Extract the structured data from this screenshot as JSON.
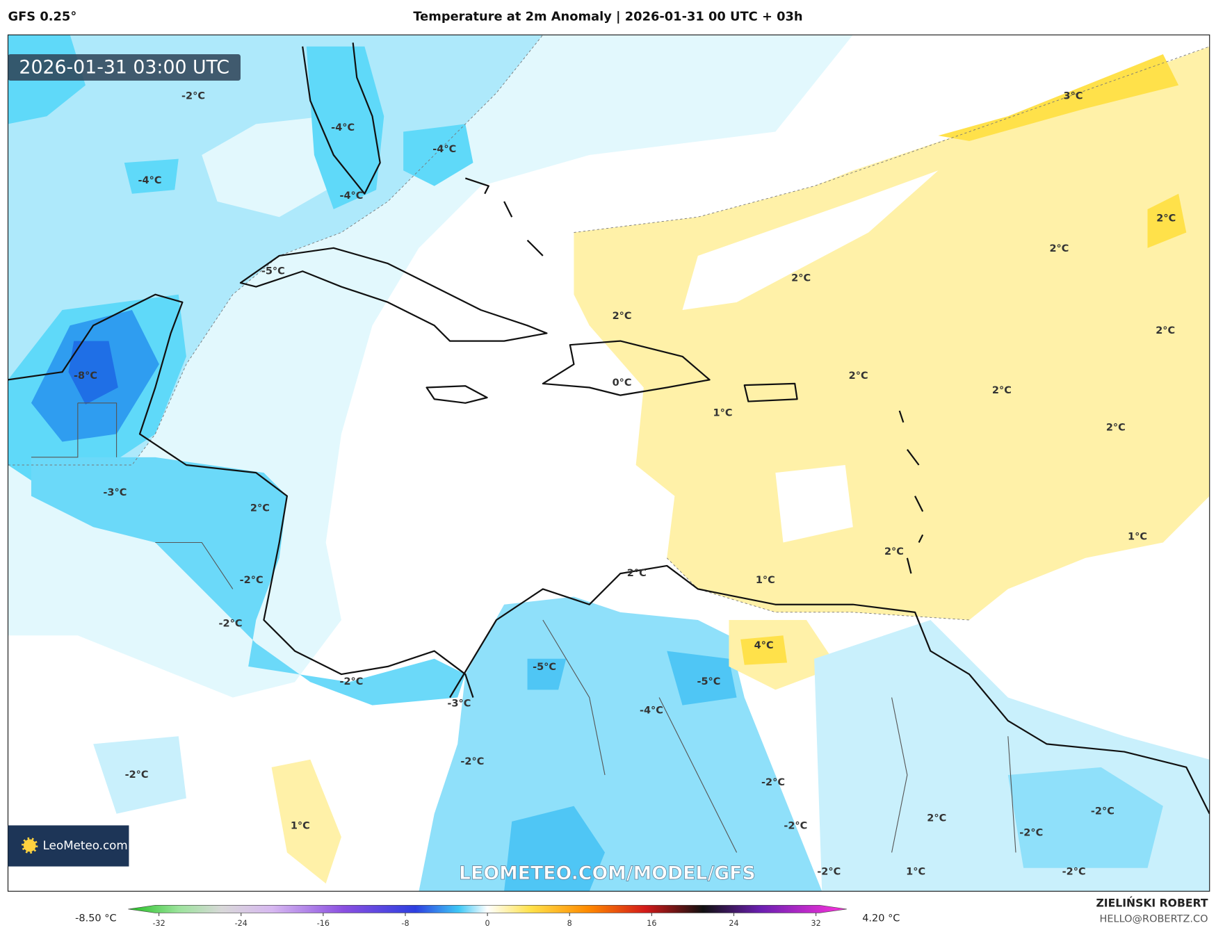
{
  "header": {
    "model": "GFS 0.25°",
    "title": "Temperature at 2m Anomaly | 2026-01-31 00 UTC + 03h"
  },
  "map": {
    "valid_time": "2026-01-31 03:00 UTC",
    "contour_labels": [
      "-2°C",
      "-4°C",
      "-4°C",
      "-4°C",
      "-4°C",
      "3°C",
      "2°C",
      "2°C",
      "-5°C",
      "2°C",
      "2°C",
      "2°C",
      "-8°C",
      "2°C",
      "0°C",
      "2°C",
      "1°C",
      "2°C",
      "-3°C",
      "2°C",
      "1°C",
      "2°C",
      "2°C",
      "1°C",
      "-2°C",
      "-2°C",
      "4°C",
      "-5°C",
      "-5°C",
      "-2°C",
      "-3°C",
      "-4°C",
      "-2°C",
      "-2°C",
      "-2°C",
      "2°C",
      "-2°C",
      "-2°C",
      "1°C",
      "-2°C",
      "-2°C",
      "1°C",
      "-2°C"
    ],
    "watermark": "LEOMETEO.COM/MODEL/GFS",
    "logo": "LeoMeteo.com"
  },
  "colorbar": {
    "min_label": "-8.50 °C",
    "max_label": "4.20 °C",
    "lim": [
      -35,
      35
    ],
    "ticks": [
      -32,
      -24,
      -16,
      -8,
      0,
      8,
      16,
      24,
      32
    ]
  },
  "credits": {
    "author": "ZIELIŃSKI ROBERT",
    "email": "HELLO@ROBERTZ.CO"
  }
}
